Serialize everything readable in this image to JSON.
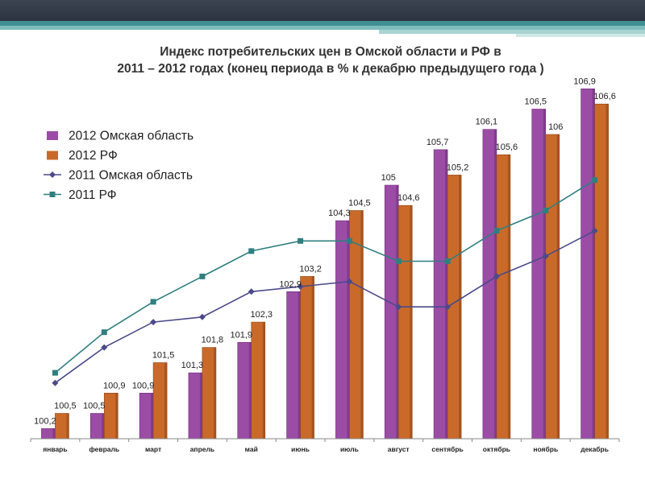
{
  "title_line1": "Индекс потребительских цен в Омской области и РФ в",
  "title_line2": "2011 – 2012 годах (конец периода в % к декабрю предыдущего года )",
  "chart_data": {
    "type": "bar",
    "title": "Индекс потребительских цен в Омской области и РФ в 2011 – 2012 годах (конец периода в % к декабрю предыдущего года )",
    "categories": [
      "январь",
      "февраль",
      "март",
      "апрель",
      "май",
      "июнь",
      "июль",
      "август",
      "сентябрь",
      "октябрь",
      "ноябрь",
      "декабрь"
    ],
    "ylim": [
      100,
      107
    ],
    "series": [
      {
        "name": "2012 Омская область",
        "kind": "bar",
        "color": "#9b4da6",
        "labels_shown": true,
        "values": [
          100.2,
          100.5,
          100.9,
          101.3,
          101.9,
          102.9,
          104.3,
          105,
          105.7,
          106.1,
          106.5,
          106.9
        ],
        "value_labels": [
          "100,2",
          "100,5",
          "100,9",
          "101,3",
          "101,9",
          "102,9",
          "104,3",
          "105",
          "105,7",
          "106,1",
          "106,5",
          "106,9"
        ]
      },
      {
        "name": "2012 РФ",
        "kind": "bar",
        "color": "#c96a2a",
        "labels_shown": true,
        "values": [
          100.5,
          100.9,
          101.5,
          101.8,
          102.3,
          103.2,
          104.5,
          104.6,
          105.2,
          105.6,
          106,
          106.6
        ],
        "value_labels": [
          "100,5",
          "100,9",
          "101,5",
          "101,8",
          "102,3",
          "103,2",
          "104,5",
          "104,6",
          "105,2",
          "105,6",
          "106",
          "106,6"
        ]
      },
      {
        "name": "2011 Омская область",
        "kind": "line",
        "marker": "diamond",
        "color": "#4b4a8a",
        "labels_shown": false,
        "values": [
          101.1,
          101.8,
          102.3,
          102.4,
          102.9,
          103.0,
          103.1,
          102.6,
          102.6,
          103.2,
          103.6,
          104.1
        ],
        "value_labels": []
      },
      {
        "name": "2011 РФ",
        "kind": "line",
        "marker": "square",
        "color": "#2f7f80",
        "labels_shown": false,
        "values": [
          101.3,
          102.1,
          102.7,
          103.2,
          103.7,
          103.9,
          103.9,
          103.5,
          103.5,
          104.1,
          104.5,
          105.1
        ],
        "value_labels": []
      }
    ]
  }
}
